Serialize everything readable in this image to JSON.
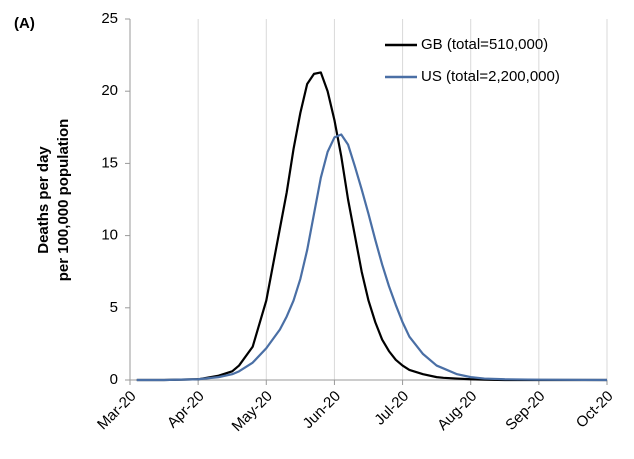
{
  "chart_data": {
    "type": "line",
    "panel_label": "(A)",
    "y_label": [
      "Deaths per day",
      "per 100,000 population"
    ],
    "x": [
      0.1,
      0.5,
      1.0,
      1.3,
      1.5,
      1.6,
      1.8,
      2.0,
      2.2,
      2.3,
      2.4,
      2.5,
      2.6,
      2.7,
      2.8,
      2.9,
      3.0,
      3.1,
      3.2,
      3.3,
      3.4,
      3.5,
      3.6,
      3.7,
      3.8,
      3.9,
      4.0,
      4.1,
      4.3,
      4.5,
      4.6,
      4.8,
      5.0,
      5.2,
      5.5,
      6.0,
      7.0
    ],
    "series": [
      {
        "name": "GB (total=510,000)",
        "color": "#000000",
        "values": [
          0,
          0,
          0.05,
          0.3,
          0.6,
          1,
          2.3,
          5.5,
          10.5,
          13,
          16,
          18.5,
          20.5,
          21.2,
          21.3,
          20,
          18,
          15.5,
          12.5,
          10,
          7.5,
          5.5,
          4,
          2.8,
          2,
          1.4,
          1,
          0.7,
          0.4,
          0.2,
          0.15,
          0.1,
          0.05,
          0.02,
          0,
          0,
          0
        ]
      },
      {
        "name": "US (total=2,200,000)",
        "color": "#4a6fa5",
        "values": [
          0,
          0,
          0.05,
          0.2,
          0.4,
          0.6,
          1.2,
          2.2,
          3.5,
          4.4,
          5.5,
          7,
          9,
          11.5,
          14,
          15.8,
          16.8,
          17.0,
          16.3,
          14.8,
          13.2,
          11.5,
          9.7,
          8,
          6.5,
          5.2,
          4,
          3,
          1.8,
          1,
          0.8,
          0.4,
          0.2,
          0.1,
          0.05,
          0.02,
          0
        ]
      }
    ],
    "xlim": [
      0,
      7
    ],
    "xticks": [
      {
        "value": 0,
        "label": "Mar-20"
      },
      {
        "value": 1,
        "label": "Apr-20"
      },
      {
        "value": 2,
        "label": "May-20"
      },
      {
        "value": 3,
        "label": "Jun-20"
      },
      {
        "value": 4,
        "label": "Jul-20"
      },
      {
        "value": 5,
        "label": "Aug-20"
      },
      {
        "value": 6,
        "label": "Sep-20"
      },
      {
        "value": 7,
        "label": "Oct-20"
      }
    ],
    "ylim": [
      0,
      25
    ],
    "yticks": [
      0,
      5,
      10,
      15,
      20,
      25
    ],
    "grid": true,
    "legend": "top-right"
  }
}
